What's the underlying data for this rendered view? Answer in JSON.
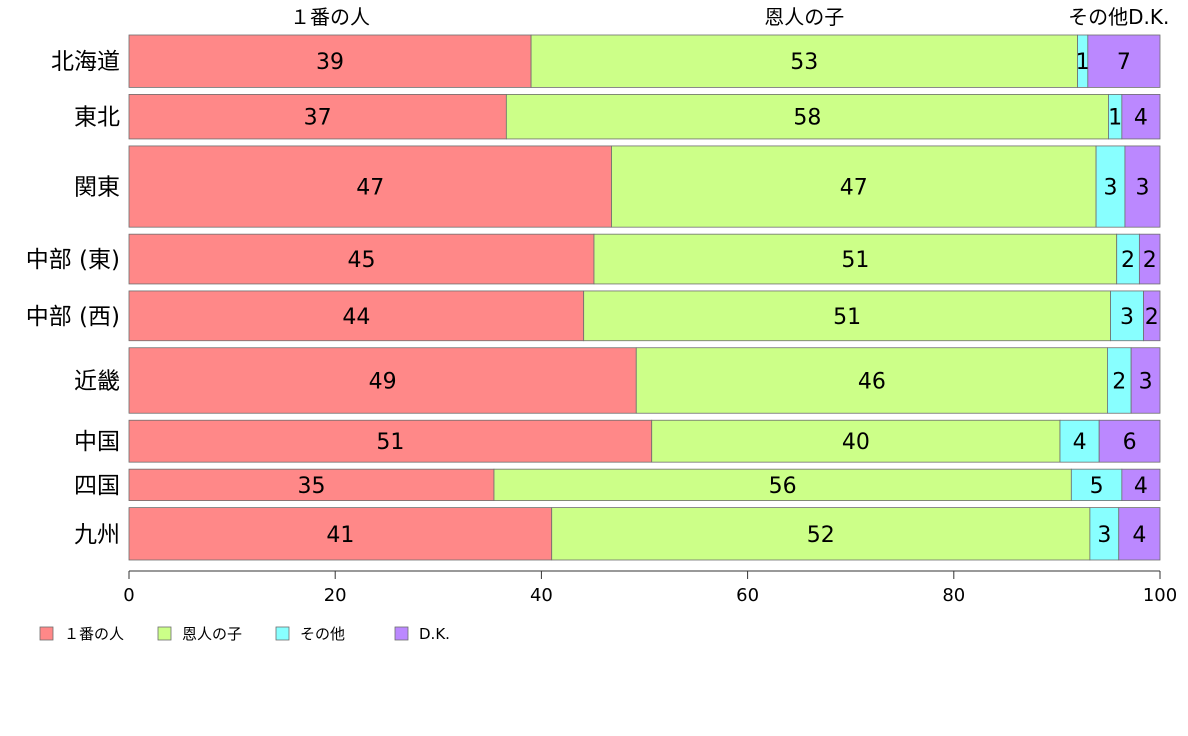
{
  "chart_data": {
    "type": "bar",
    "orientation": "horizontal",
    "stacked": true,
    "categories": [
      "北海道",
      "東北",
      "関東",
      "中部 (東)",
      "中部 (西)",
      "近畿",
      "中国",
      "四国",
      "九州"
    ],
    "category_weights": [
      1.0,
      0.85,
      1.55,
      0.95,
      0.95,
      1.25,
      0.8,
      0.6,
      1.0
    ],
    "series": [
      {
        "name": "１番の人",
        "color": "#ff8888",
        "values": [
          39,
          36.6,
          46.8,
          45.1,
          44.1,
          49.2,
          50.7,
          35.4,
          41
        ]
      },
      {
        "name": "恩人の子",
        "color": "#ccff88",
        "values": [
          53,
          58.4,
          47,
          50.7,
          51.1,
          45.7,
          39.6,
          56,
          52.2
        ]
      },
      {
        "name": "その他",
        "color": "#88ffff",
        "values": [
          1,
          1.3,
          2.8,
          2.2,
          3.2,
          2.3,
          3.8,
          4.9,
          2.8
        ]
      },
      {
        "name": "D.K.",
        "color": "#bb88ff",
        "values": [
          7,
          3.7,
          3.4,
          2,
          1.6,
          2.8,
          5.9,
          3.7,
          4
        ]
      }
    ],
    "data_labels": [
      [
        "39",
        "37",
        "47",
        "45",
        "44",
        "49",
        "51",
        "35",
        "41"
      ],
      [
        "53",
        "58",
        "47",
        "51",
        "51",
        "46",
        "40",
        "56",
        "52"
      ],
      [
        "1",
        "1",
        "3",
        "2",
        "3",
        "2",
        "4",
        "5",
        "3"
      ],
      [
        "7",
        "4",
        "3",
        "2",
        "2",
        "3",
        "6",
        "4",
        "4"
      ]
    ],
    "top_labels": [
      "１番の人",
      "恩人の子",
      "その他D.K."
    ],
    "x_ticks": [
      0,
      20,
      40,
      60,
      80,
      100
    ],
    "xlim": [
      0,
      100
    ],
    "legend": {
      "position": "bottom-left",
      "items": [
        "１番の人",
        "恩人の子",
        "その他",
        "D.K."
      ]
    }
  }
}
